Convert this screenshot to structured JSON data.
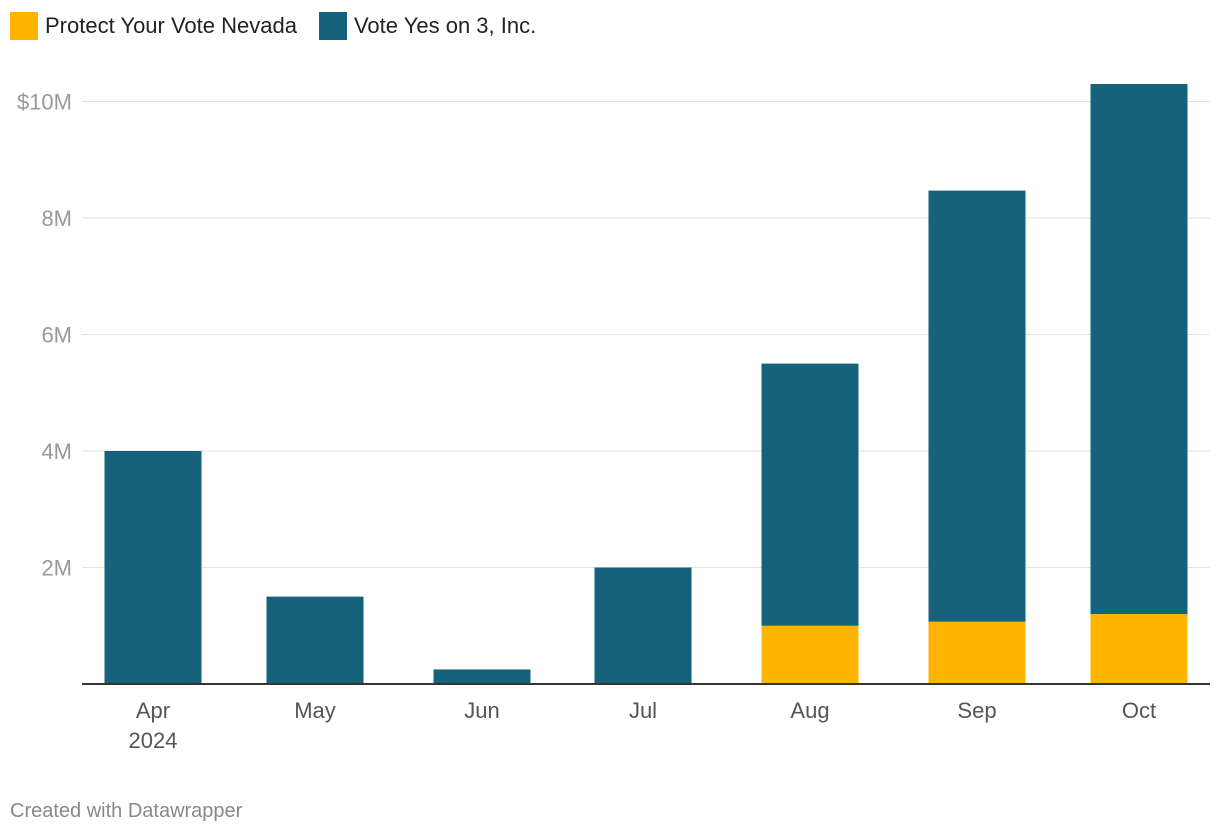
{
  "chart_data": {
    "type": "bar",
    "stacked": true,
    "categories": [
      "Apr",
      "May",
      "Jun",
      "Jul",
      "Aug",
      "Sep",
      "Oct"
    ],
    "category_sublabels": [
      "2024",
      "",
      "",
      "",
      "",
      "",
      ""
    ],
    "series": [
      {
        "name": "Protect Your Vote Nevada",
        "color": "#ffb400",
        "values": [
          0,
          0,
          0,
          0,
          1.0,
          1.07,
          1.2
        ]
      },
      {
        "name": "Vote Yes on 3, Inc.",
        "color": "#17627b",
        "values": [
          4.0,
          1.5,
          0.25,
          2.0,
          4.5,
          7.4,
          9.1
        ]
      }
    ],
    "unit": "M",
    "ylim": [
      0,
      10.3
    ],
    "yticks": [
      {
        "value": 2,
        "label": "2M"
      },
      {
        "value": 4,
        "label": "4M"
      },
      {
        "value": 6,
        "label": "6M"
      },
      {
        "value": 8,
        "label": "8M"
      },
      {
        "value": 10,
        "label": "$10M"
      }
    ],
    "grid": true,
    "legend_position": "top-left"
  },
  "footer": {
    "credit": "Created with Datawrapper"
  }
}
